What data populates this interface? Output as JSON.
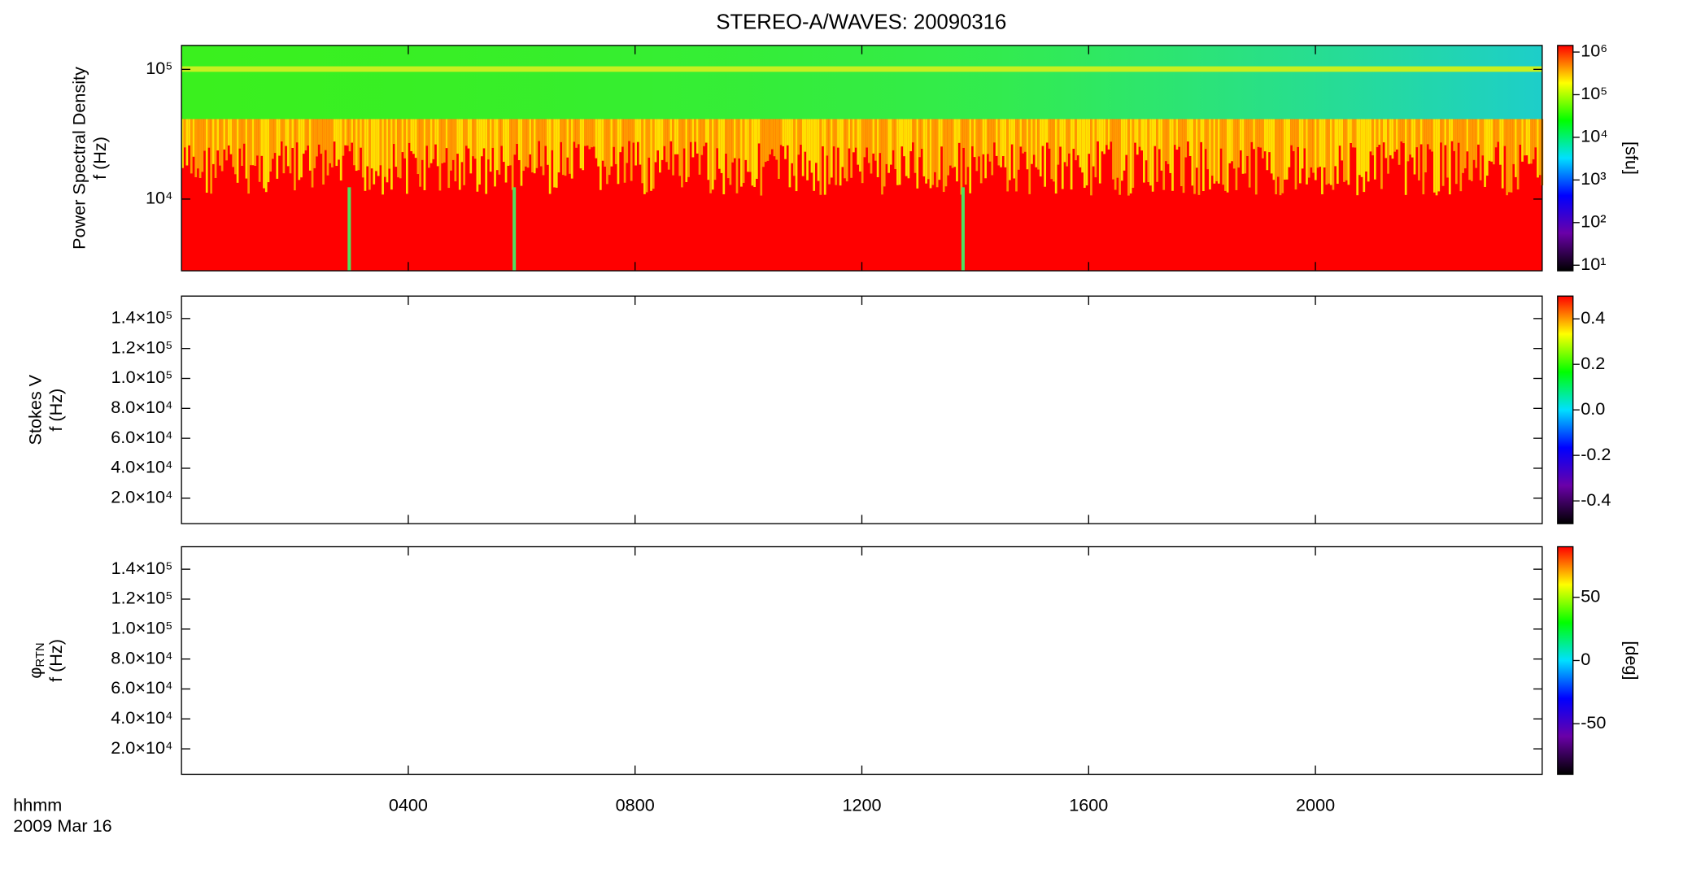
{
  "chart_data": [
    {
      "type": "spectrogram",
      "title": "STEREO-A/WAVES: 20090316",
      "ylabel": "Power Spectral Density",
      "ylabel_unit": "f (Hz)",
      "yscale": "log",
      "ylim": [
        2800,
        153000
      ],
      "yticks": [
        {
          "value": 10000,
          "label": "10⁴"
        },
        {
          "value": 100000,
          "label": "10⁵"
        }
      ],
      "colorbar": {
        "label": "[sfu]",
        "scale": "log",
        "lim": [
          7.4,
          1430000
        ],
        "ticks": [
          {
            "value": 10,
            "label": "10¹"
          },
          {
            "value": 100,
            "label": "10²"
          },
          {
            "value": 1000,
            "label": "10³"
          },
          {
            "value": 10000,
            "label": "10⁴"
          },
          {
            "value": 100000,
            "label": "10⁵"
          },
          {
            "value": 1000000,
            "label": "10⁶"
          }
        ]
      }
    },
    {
      "type": "spectrogram",
      "ylabel": "Stokes V",
      "ylabel_unit": "f (Hz)",
      "yscale": "linear",
      "ylim": [
        3000,
        155000
      ],
      "yticks": [
        {
          "value": 20000,
          "label": "2.0×10⁴"
        },
        {
          "value": 40000,
          "label": "4.0×10⁴"
        },
        {
          "value": 60000,
          "label": "6.0×10⁴"
        },
        {
          "value": 80000,
          "label": "8.0×10⁴"
        },
        {
          "value": 100000,
          "label": "1.0×10⁵"
        },
        {
          "value": 120000,
          "label": "1.2×10⁵"
        },
        {
          "value": 140000,
          "label": "1.4×10⁵"
        }
      ],
      "colorbar": {
        "scale": "linear",
        "lim": [
          -0.5,
          0.5
        ],
        "ticks": [
          -0.4,
          -0.2,
          {
            "value": 0,
            "label": "0.0"
          },
          0.2,
          0.4
        ]
      }
    },
    {
      "type": "spectrogram",
      "ylabel": "φ",
      "ylabel_sub": "RTN",
      "ylabel_unit": "f (Hz)",
      "yscale": "linear",
      "ylim": [
        3000,
        155000
      ],
      "yticks": [
        {
          "value": 20000,
          "label": "2.0×10⁴"
        },
        {
          "value": 40000,
          "label": "4.0×10⁴"
        },
        {
          "value": 60000,
          "label": "6.0×10⁴"
        },
        {
          "value": 80000,
          "label": "8.0×10⁴"
        },
        {
          "value": 100000,
          "label": "1.0×10⁵"
        },
        {
          "value": 120000,
          "label": "1.2×10⁵"
        },
        {
          "value": 140000,
          "label": "1.4×10⁵"
        }
      ],
      "colorbar": {
        "label": "[deg]",
        "scale": "linear",
        "lim": [
          -90,
          90
        ],
        "ticks": [
          -50,
          0,
          50
        ]
      },
      "xlabel": "hhmm",
      "date": "2009 Mar 16",
      "xlim": [
        0,
        24
      ],
      "xticks": [
        {
          "value": 4,
          "label": "0400"
        },
        {
          "value": 8,
          "label": "0800"
        },
        {
          "value": 12,
          "label": "1200"
        },
        {
          "value": 16,
          "label": "1600"
        },
        {
          "value": 20,
          "label": "2000"
        }
      ]
    }
  ],
  "colormap": [
    "#000000",
    "#6a00a8",
    "#0000ff",
    "#00e0ff",
    "#00ff00",
    "#ffff00",
    "#ff0000"
  ]
}
